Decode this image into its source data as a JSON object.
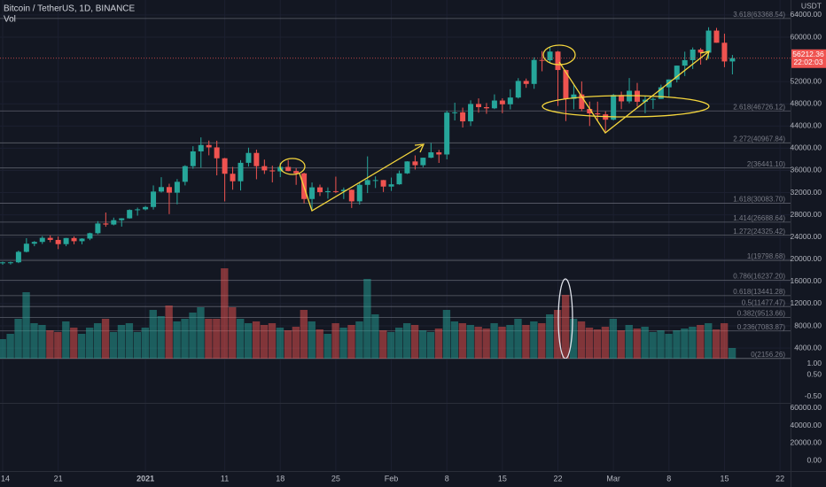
{
  "chart_data": {
    "type": "candlestick",
    "title": "Bitcoin / TetherUS, 1D, BINANCE",
    "volume_label": "Vol",
    "currency": "USDT",
    "countdown": "22:02:03",
    "up_color": "#26a69a",
    "down_color": "#ef5350",
    "grid": true,
    "dates": [
      "2020-12-14",
      "2020-12-15",
      "2020-12-16",
      "2020-12-17",
      "2020-12-18",
      "2020-12-19",
      "2020-12-20",
      "2020-12-21",
      "2020-12-22",
      "2020-12-23",
      "2020-12-24",
      "2020-12-25",
      "2020-12-26",
      "2020-12-27",
      "2020-12-28",
      "2020-12-29",
      "2020-12-30",
      "2020-12-31",
      "2021-01-01",
      "2021-01-02",
      "2021-01-03",
      "2021-01-04",
      "2021-01-05",
      "2021-01-06",
      "2021-01-07",
      "2021-01-08",
      "2021-01-09",
      "2021-01-10",
      "2021-01-11",
      "2021-01-12",
      "2021-01-13",
      "2021-01-14",
      "2021-01-15",
      "2021-01-16",
      "2021-01-17",
      "2021-01-18",
      "2021-01-19",
      "2021-01-20",
      "2021-01-21",
      "2021-01-22",
      "2021-01-23",
      "2021-01-24",
      "2021-01-25",
      "2021-01-26",
      "2021-01-27",
      "2021-01-28",
      "2021-01-29",
      "2021-01-30",
      "2021-01-31",
      "2021-02-01",
      "2021-02-02",
      "2021-02-03",
      "2021-02-04",
      "2021-02-05",
      "2021-02-06",
      "2021-02-07",
      "2021-02-08",
      "2021-02-09",
      "2021-02-10",
      "2021-02-11",
      "2021-02-12",
      "2021-02-13",
      "2021-02-14",
      "2021-02-15",
      "2021-02-16",
      "2021-02-17",
      "2021-02-18",
      "2021-02-19",
      "2021-02-20",
      "2021-02-21",
      "2021-02-22",
      "2021-02-23",
      "2021-02-24",
      "2021-02-25",
      "2021-02-26",
      "2021-02-27",
      "2021-02-28",
      "2021-03-01",
      "2021-03-02",
      "2021-03-03",
      "2021-03-04",
      "2021-03-05",
      "2021-03-06",
      "2021-03-07",
      "2021-03-08",
      "2021-03-09",
      "2021-03-10",
      "2021-03-11",
      "2021-03-12",
      "2021-03-13",
      "2021-03-14",
      "2021-03-15",
      "2021-03-16"
    ],
    "open": [
      19275,
      19440,
      19450,
      21335,
      22800,
      23120,
      23850,
      23480,
      22720,
      23820,
      23250,
      23720,
      24690,
      26440,
      26250,
      27040,
      27370,
      28880,
      28990,
      29410,
      32190,
      33000,
      31990,
      33950,
      36770,
      39430,
      40580,
      40150,
      38190,
      35400,
      34050,
      37370,
      39150,
      36770,
      36010,
      35830,
      36630,
      35890,
      35470,
      30850,
      32950,
      32080,
      32260,
      32250,
      32510,
      30430,
      33400,
      34260,
      34260,
      33090,
      33500,
      35470,
      37620,
      36940,
      38290,
      39260,
      38870,
      46420,
      46460,
      44840,
      47970,
      47400,
      47190,
      48590,
      47910,
      49130,
      52120,
      51580,
      55900,
      55840,
      57410,
      54090,
      48890,
      49680,
      47070,
      46280,
      46100,
      45140,
      49590,
      48440,
      50350,
      48370,
      48750,
      48880,
      50970,
      52380,
      54880,
      55860,
      57770,
      57220,
      61190,
      59000,
      55630
    ],
    "high": [
      19570,
      19570,
      21560,
      23800,
      23280,
      24170,
      24300,
      24100,
      23840,
      24120,
      23790,
      24790,
      26870,
      28420,
      27500,
      27400,
      28990,
      29300,
      29600,
      33300,
      34780,
      33600,
      34440,
      36940,
      40360,
      41950,
      41380,
      41350,
      38260,
      36630,
      37850,
      40100,
      39750,
      37950,
      36850,
      37400,
      37850,
      36420,
      35600,
      33830,
      33450,
      32940,
      34880,
      32920,
      32560,
      33780,
      38530,
      34930,
      34290,
      34720,
      35980,
      37660,
      38700,
      38310,
      40950,
      39700,
      46750,
      48200,
      47310,
      48630,
      48980,
      48150,
      49700,
      49000,
      50620,
      52620,
      52550,
      56370,
      57500,
      58350,
      57530,
      54180,
      51370,
      52040,
      48400,
      48390,
      46640,
      49790,
      50200,
      52640,
      51770,
      49450,
      49200,
      51450,
      52400,
      54900,
      57390,
      58150,
      58050,
      61790,
      61680,
      60630,
      56800
    ],
    "low": [
      19000,
      19050,
      19300,
      21230,
      22350,
      22750,
      23060,
      21820,
      22350,
      22700,
      22700,
      23440,
      24500,
      25850,
      26100,
      25880,
      27320,
      27850,
      28800,
      28950,
      32000,
      28130,
      29900,
      33300,
      36300,
      36500,
      38720,
      35110,
      30420,
      32530,
      32380,
      36700,
      34410,
      35360,
      33850,
      34800,
      35850,
      33400,
      30070,
      28850,
      31390,
      30900,
      31910,
      30840,
      29240,
      29840,
      31920,
      32830,
      32110,
      32300,
      33420,
      35360,
      36160,
      36570,
      38210,
      37350,
      37990,
      45000,
      43730,
      44000,
      46400,
      46200,
      47050,
      46300,
      47000,
      48950,
      50880,
      50700,
      53860,
      55480,
      47620,
      44890,
      47000,
      46670,
      44000,
      45000,
      43000,
      45000,
      47050,
      48100,
      47500,
      46300,
      47070,
      48880,
      49270,
      51850,
      53000,
      54270,
      55050,
      56080,
      59000,
      54600,
      53300
    ],
    "close": [
      19440,
      19450,
      21335,
      22800,
      23120,
      23850,
      23480,
      22720,
      23820,
      23250,
      23720,
      24690,
      26440,
      26250,
      27040,
      27370,
      28880,
      28990,
      29410,
      32190,
      33000,
      31990,
      33950,
      36770,
      39430,
      40580,
      40150,
      38190,
      35400,
      34050,
      37370,
      39150,
      36770,
      36010,
      35830,
      36630,
      35890,
      35470,
      30850,
      32950,
      32080,
      32260,
      32250,
      32510,
      30430,
      33400,
      34260,
      34260,
      33090,
      33500,
      35470,
      37620,
      36940,
      38290,
      39260,
      38870,
      46420,
      46460,
      44840,
      47970,
      47400,
      47190,
      48590,
      47910,
      49130,
      52120,
      51580,
      55900,
      55840,
      57410,
      54090,
      48890,
      49680,
      47070,
      46280,
      46100,
      45140,
      49590,
      48440,
      50350,
      48370,
      48750,
      48880,
      50970,
      52380,
      54880,
      55860,
      57770,
      57220,
      61190,
      59000,
      55630,
      56212.36
    ],
    "volume": [
      22,
      28,
      45,
      75,
      40,
      38,
      32,
      30,
      42,
      35,
      28,
      35,
      40,
      45,
      30,
      38,
      40,
      30,
      35,
      55,
      48,
      60,
      42,
      45,
      52,
      58,
      45,
      45,
      102,
      58,
      45,
      40,
      42,
      38,
      40,
      35,
      32,
      36,
      55,
      42,
      33,
      28,
      40,
      35,
      38,
      42,
      90,
      50,
      32,
      30,
      35,
      40,
      38,
      32,
      30,
      34,
      55,
      42,
      40,
      38,
      36,
      34,
      40,
      36,
      38,
      45,
      38,
      42,
      40,
      50,
      55,
      72,
      45,
      42,
      35,
      33,
      36,
      45,
      32,
      38,
      34,
      36,
      30,
      32,
      28,
      32,
      34,
      36,
      38,
      40,
      33,
      40,
      12
    ],
    "ylim": [
      2100,
      66700
    ],
    "yticks": [
      {
        "value": 64000,
        "label": "64000.00"
      },
      {
        "value": 60000,
        "label": "60000.00"
      },
      {
        "value": 52000,
        "label": "52000.00"
      },
      {
        "value": 48000,
        "label": "48000.00"
      },
      {
        "value": 44000,
        "label": "44000.00"
      },
      {
        "value": 40000,
        "label": "40000.00"
      },
      {
        "value": 36000,
        "label": "36000.00"
      },
      {
        "value": 32000,
        "label": "32000.00"
      },
      {
        "value": 28000,
        "label": "28000.00"
      },
      {
        "value": 24000,
        "label": "24000.00"
      },
      {
        "value": 20000,
        "label": "20000.00"
      },
      {
        "value": 16000,
        "label": "16000.00"
      },
      {
        "value": 12000,
        "label": "12000.00"
      },
      {
        "value": 8000,
        "label": "8000.00"
      },
      {
        "value": 4000,
        "label": "4000.00"
      }
    ],
    "xticks": [
      {
        "value": "2020-12-14",
        "label": "14"
      },
      {
        "value": "2020-12-21",
        "label": "21"
      },
      {
        "value": "2021-01-01",
        "label": "2021"
      },
      {
        "value": "2021-01-11",
        "label": "11"
      },
      {
        "value": "2021-01-18",
        "label": "18"
      },
      {
        "value": "2021-01-25",
        "label": "25"
      },
      {
        "value": "2021-02-01",
        "label": "Feb"
      },
      {
        "value": "2021-02-08",
        "label": "8"
      },
      {
        "value": "2021-02-15",
        "label": "15"
      },
      {
        "value": "2021-02-22",
        "label": "22"
      },
      {
        "value": "2021-03-01",
        "label": "Mar"
      },
      {
        "value": "2021-03-08",
        "label": "8"
      },
      {
        "value": "2021-03-15",
        "label": "15"
      },
      {
        "value": "2021-03-22",
        "label": "22"
      }
    ],
    "fib_levels": [
      {
        "label": "3.618(63368.54)",
        "value": 63368.54
      },
      {
        "label": "2.618(46726.12)",
        "value": 46726.12
      },
      {
        "label": "2.272(40967.84)",
        "value": 40967.84
      },
      {
        "label": "2(36441.10)",
        "value": 36441.1
      },
      {
        "label": "1.618(30083.70)",
        "value": 30083.7
      },
      {
        "label": "1.414(26688.64)",
        "value": 26688.64
      },
      {
        "label": "1.272(24325.42)",
        "value": 24325.42
      },
      {
        "label": "1(19798.68)",
        "value": 19798.68
      },
      {
        "label": "0.786(16237.20)",
        "value": 16237.2
      },
      {
        "label": "0.618(13441.28)",
        "value": 13441.28
      },
      {
        "label": "0.5(11477.47)",
        "value": 11477.47
      },
      {
        "label": "0.382(9513.66)",
        "value": 9513.66
      },
      {
        "label": "0.236(7083.87)",
        "value": 7083.87
      },
      {
        "label": "0(2156.26)",
        "value": 2156.26
      }
    ],
    "panes": [
      {
        "ylim": [
          -0.8,
          1.2
        ],
        "yticks": [
          {
            "value": 1,
            "label": "1.00"
          },
          {
            "value": 0.5,
            "label": "0.50"
          },
          {
            "value": -0.5,
            "label": "-0.50"
          }
        ]
      },
      {
        "ylim": [
          -12000,
          65000
        ],
        "yticks": [
          {
            "value": 60000,
            "label": "60000.00"
          },
          {
            "value": 40000,
            "label": "40000.00"
          },
          {
            "value": 20000,
            "label": "20000.00"
          },
          {
            "value": 0,
            "label": "0.00"
          }
        ]
      }
    ]
  }
}
